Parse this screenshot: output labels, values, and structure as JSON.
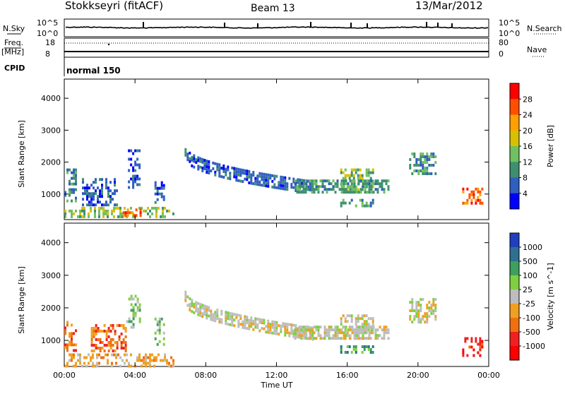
{
  "header": {
    "station": "Stokkseyri (fitACF)",
    "beam": "Beam 13",
    "date": "13/Mar/2012"
  },
  "strip": {
    "nsky_label": "N.Sky",
    "nsky_ticks": [
      "10^5",
      "10^0"
    ],
    "nsearch_label": "N.Search",
    "nsearch_ticks": [
      "10^5",
      "10^0"
    ],
    "freq_label": "Freq.",
    "freq_unit": "[MHz]",
    "freq_ticks": [
      "18",
      "8"
    ],
    "nave_label": "Nave",
    "nave_ticks": [
      "80",
      "0"
    ],
    "cpid_label": "CPID",
    "cpid_value": "normal 150"
  },
  "panels": {
    "ylabel": "Slant Range [km]",
    "xlabel": "Time UT"
  },
  "chart_data": [
    {
      "type": "heatmap",
      "quantity": "Power",
      "colorbar_label": "Power [dB]",
      "colorbar_ticks": [
        "28",
        "24",
        "20",
        "16",
        "12",
        "8",
        "4"
      ],
      "colorbar_colors": [
        "#ff0000",
        "#ff5000",
        "#ff9f00",
        "#d8c000",
        "#6fc060",
        "#3f8f6f",
        "#2f5fbf",
        "#0000ff"
      ],
      "xlim": [
        0,
        24
      ],
      "ylim": [
        200,
        4600
      ],
      "x_ticks": [
        "00:00",
        "04:00",
        "08:00",
        "12:00",
        "16:00",
        "20:00",
        "00:00"
      ],
      "y_ticks": [
        1000,
        2000,
        3000,
        4000
      ],
      "regions": [
        {
          "t0": 0.0,
          "t1": 0.7,
          "r0": 800,
          "r1": 1800,
          "level": 2
        },
        {
          "t0": 0.0,
          "t1": 6.2,
          "r0": 250,
          "r1": 600,
          "level": 3
        },
        {
          "t0": 3.3,
          "t1": 4.3,
          "r0": 300,
          "r1": 550,
          "level": 6
        },
        {
          "t0": 1.0,
          "t1": 3.0,
          "r0": 700,
          "r1": 1500,
          "level": 1
        },
        {
          "t0": 3.6,
          "t1": 4.3,
          "r0": 1200,
          "r1": 2400,
          "level": 1
        },
        {
          "t0": 5.1,
          "t1": 5.6,
          "r0": 700,
          "r1": 1400,
          "level": 1
        },
        {
          "t0": 15.6,
          "t1": 17.5,
          "r0": 1100,
          "r1": 1800,
          "level": 3
        },
        {
          "t0": 15.6,
          "t1": 17.5,
          "r0": 600,
          "r1": 850,
          "level": 2
        },
        {
          "t0": 19.5,
          "t1": 21.0,
          "r0": 1600,
          "r1": 2300,
          "level": 2
        },
        {
          "t0": 22.5,
          "t1": 23.6,
          "r0": 700,
          "r1": 1200,
          "level": 6
        }
      ],
      "arcs": [
        {
          "t0": 6.8,
          "t1": 14.0,
          "r0": 2350,
          "r1": 1250,
          "level": 1
        },
        {
          "t0": 13.0,
          "t1": 18.3,
          "r0": 1280,
          "r1": 1280,
          "level": 2
        }
      ]
    },
    {
      "type": "heatmap",
      "quantity": "Velocity",
      "colorbar_label": "Velocity [m s^-1]",
      "colorbar_ticks": [
        "1000",
        "500",
        "100",
        "25",
        "-25",
        "-100",
        "-500",
        "-1000"
      ],
      "colorbar_colors": [
        "#1f3fbf",
        "#2f6f8f",
        "#3f9f5f",
        "#7fd040",
        "#bdbdbd",
        "#f0a020",
        "#f07010",
        "#f02020",
        "#ff0000"
      ],
      "xlim": [
        0,
        24
      ],
      "ylim": [
        200,
        4600
      ],
      "x_ticks": [
        "00:00",
        "04:00",
        "08:00",
        "12:00",
        "16:00",
        "20:00",
        "00:00"
      ],
      "y_ticks": [
        1000,
        2000,
        3000,
        4000
      ],
      "regions": [
        {
          "t0": 0.0,
          "t1": 6.2,
          "r0": 250,
          "r1": 600,
          "level": 3
        },
        {
          "t0": 0.0,
          "t1": 0.6,
          "r0": 700,
          "r1": 1600,
          "level": 2
        },
        {
          "t0": 1.5,
          "t1": 3.5,
          "r0": 700,
          "r1": 1500,
          "level": 2
        },
        {
          "t0": 3.5,
          "t1": 4.3,
          "r0": 1400,
          "r1": 2400,
          "level": 5
        },
        {
          "t0": 5.1,
          "t1": 5.6,
          "r0": 900,
          "r1": 1700,
          "level": 5
        },
        {
          "t0": 15.6,
          "t1": 17.5,
          "r0": 600,
          "r1": 850,
          "level": 6
        },
        {
          "t0": 15.6,
          "t1": 17.5,
          "r0": 1100,
          "r1": 1800,
          "level": 4
        },
        {
          "t0": 19.5,
          "t1": 21.0,
          "r0": 1600,
          "r1": 2300,
          "level": 4
        },
        {
          "t0": 22.5,
          "t1": 23.6,
          "r0": 500,
          "r1": 1100,
          "level": 1
        }
      ],
      "arcs": [
        {
          "t0": 6.8,
          "t1": 14.0,
          "r0": 2350,
          "r1": 1250,
          "level": 4
        },
        {
          "t0": 13.0,
          "t1": 18.3,
          "r0": 1280,
          "r1": 1280,
          "level": 4
        }
      ]
    }
  ]
}
